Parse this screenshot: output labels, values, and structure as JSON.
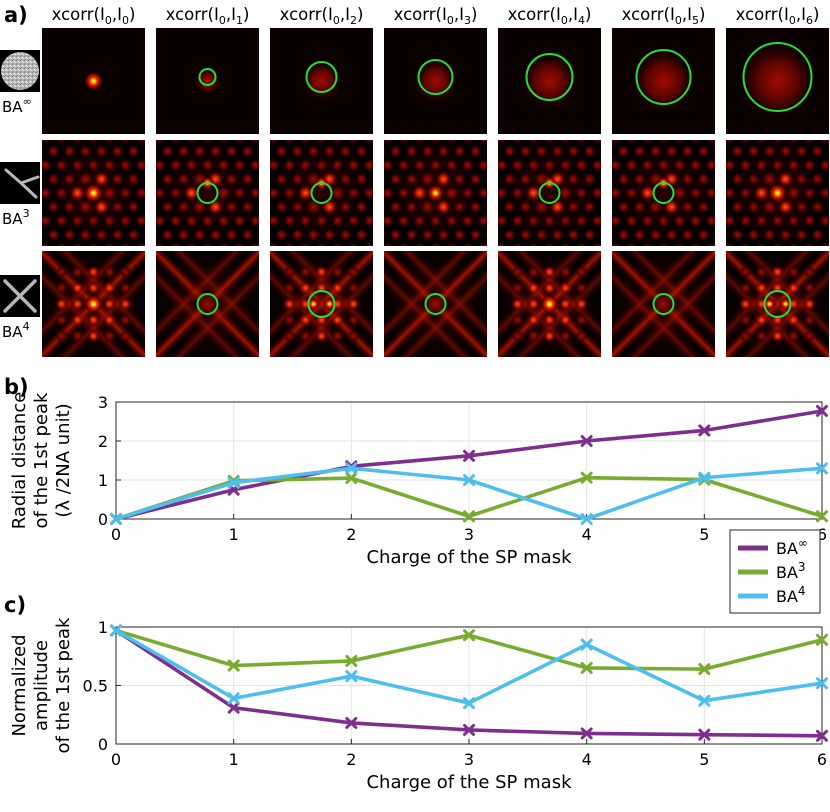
{
  "panel_labels": {
    "a": "a)",
    "b": "b)",
    "c": "c)"
  },
  "column_labels": [
    {
      "base": "xcorr(I",
      "s1": "0",
      "mid": ",I",
      "s2": "0",
      "end": ")"
    },
    {
      "base": "xcorr(I",
      "s1": "0",
      "mid": ",I",
      "s2": "1",
      "end": ")"
    },
    {
      "base": "xcorr(I",
      "s1": "0",
      "mid": ",I",
      "s2": "2",
      "end": ")"
    },
    {
      "base": "xcorr(I",
      "s1": "0",
      "mid": ",I",
      "s2": "3",
      "end": ")"
    },
    {
      "base": "xcorr(I",
      "s1": "0",
      "mid": ",I",
      "s2": "4",
      "end": ")"
    },
    {
      "base": "xcorr(I",
      "s1": "0",
      "mid": ",I",
      "s2": "5",
      "end": ")"
    },
    {
      "base": "xcorr(I",
      "s1": "0",
      "mid": ",I",
      "s2": "6",
      "end": ")"
    }
  ],
  "row_labels": [
    {
      "base": "BA",
      "sup": "∞",
      "mask": "disk"
    },
    {
      "base": "BA",
      "sup": "3",
      "mask": "three-arm"
    },
    {
      "base": "BA",
      "sup": "4",
      "mask": "four-arm"
    }
  ],
  "colors": {
    "BA_inf": "#7e2f8e",
    "BA_3": "#77ac30",
    "BA_4": "#4dbeee",
    "circle": "#22e03a"
  },
  "chart_data": [
    {
      "type": "line",
      "title": "",
      "xlabel": "Charge of the SP mask",
      "ylabel_lines": [
        "Radial distance",
        "of the 1st peak",
        "(λ /2NA unit)"
      ],
      "xlim": [
        0,
        6
      ],
      "ylim": [
        0,
        3
      ],
      "x": [
        0,
        1,
        2,
        3,
        4,
        5,
        6
      ],
      "xticks": [
        "0",
        "1",
        "2",
        "3",
        "4",
        "5",
        "6"
      ],
      "yticks": [
        0,
        1,
        2,
        3
      ],
      "ytick_labels": [
        "0",
        "1",
        "2",
        "3"
      ],
      "grid": true,
      "legend_position": "bottom-right",
      "series": [
        {
          "name": "BA",
          "sup": "∞",
          "color": "#7e2f8e",
          "values": [
            0,
            0.75,
            1.35,
            1.62,
            2.0,
            2.27,
            2.77
          ]
        },
        {
          "name": "BA",
          "sup": "3",
          "color": "#77ac30",
          "values": [
            0,
            0.98,
            1.05,
            0.07,
            1.06,
            1.01,
            0.07
          ]
        },
        {
          "name": "BA",
          "sup": "4",
          "color": "#4dbeee",
          "values": [
            0,
            0.93,
            1.3,
            1.0,
            0,
            1.06,
            1.3
          ]
        }
      ]
    },
    {
      "type": "line",
      "title": "",
      "xlabel": "Charge of the SP mask",
      "ylabel_lines": [
        "Normalized",
        "amplitude",
        "of the 1st peak"
      ],
      "xlim": [
        0,
        6
      ],
      "ylim": [
        0,
        1
      ],
      "x": [
        0,
        1,
        2,
        3,
        4,
        5,
        6
      ],
      "xticks": [
        "0",
        "1",
        "2",
        "3",
        "4",
        "5",
        "6"
      ],
      "yticks": [
        0,
        0.5,
        1
      ],
      "ytick_labels": [
        "0",
        "0.5",
        "1"
      ],
      "grid": true,
      "series": [
        {
          "name": "BA",
          "sup": "∞",
          "color": "#7e2f8e",
          "values": [
            0.97,
            0.31,
            0.18,
            0.12,
            0.09,
            0.08,
            0.07
          ]
        },
        {
          "name": "BA",
          "sup": "3",
          "color": "#77ac30",
          "values": [
            0.97,
            0.67,
            0.71,
            0.93,
            0.65,
            0.64,
            0.89
          ]
        },
        {
          "name": "BA",
          "sup": "4",
          "color": "#4dbeee",
          "values": [
            0.97,
            0.39,
            0.58,
            0.35,
            0.85,
            0.37,
            0.52
          ]
        }
      ]
    }
  ]
}
